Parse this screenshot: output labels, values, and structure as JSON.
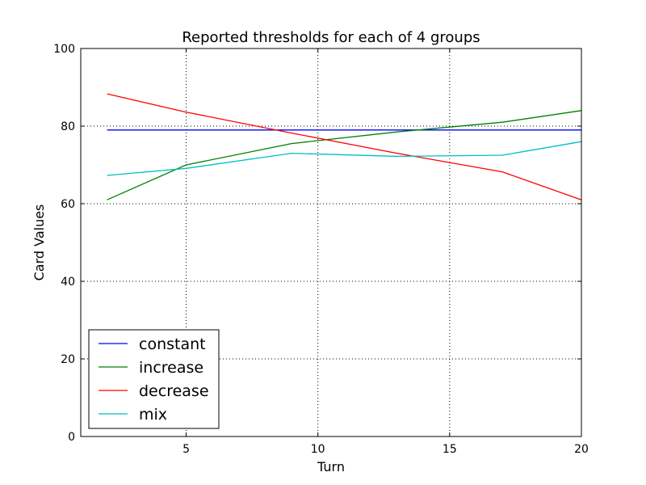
{
  "chart_data": {
    "type": "line",
    "title": "Reported thresholds for each of 4 groups",
    "xlabel": "Turn",
    "ylabel": "Card Values",
    "xlim": [
      1,
      20
    ],
    "ylim": [
      0,
      100
    ],
    "xticks": [
      5,
      10,
      15,
      20
    ],
    "yticks": [
      0,
      20,
      40,
      60,
      80,
      100
    ],
    "grid": true,
    "legend_position": "lower-left",
    "series": [
      {
        "name": "constant",
        "color": "#0000ff",
        "x": [
          2,
          20
        ],
        "y": [
          79,
          79
        ]
      },
      {
        "name": "increase",
        "color": "#008000",
        "x": [
          2,
          5,
          9,
          13,
          17,
          20
        ],
        "y": [
          61,
          70,
          75.5,
          78.5,
          81,
          84
        ]
      },
      {
        "name": "decrease",
        "color": "#ff0000",
        "x": [
          2,
          5,
          9,
          13,
          17,
          20
        ],
        "y": [
          88.3,
          83.6,
          78.2,
          73,
          68.2,
          61
        ]
      },
      {
        "name": "mix",
        "color": "#00bfbf",
        "x": [
          2,
          5,
          9,
          13,
          17,
          20
        ],
        "y": [
          67.3,
          69.1,
          73,
          72.2,
          72.5,
          76
        ]
      }
    ]
  }
}
